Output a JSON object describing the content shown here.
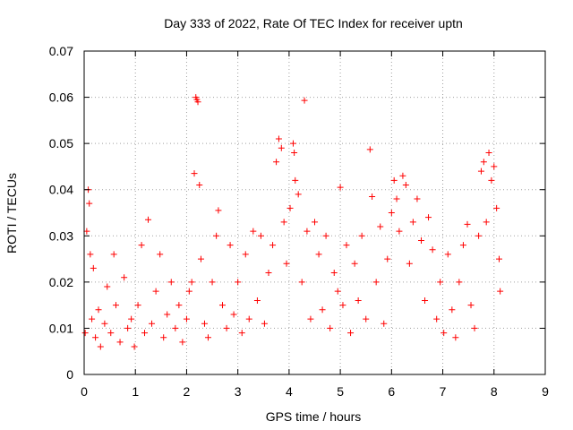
{
  "chart_data": {
    "type": "scatter",
    "title": "Day 333 of 2022, Rate Of TEC Index for receiver uptn",
    "xlabel": "GPS time / hours",
    "ylabel": "ROTI / TECUs",
    "xlim": [
      0,
      9
    ],
    "ylim": [
      0,
      0.07
    ],
    "x_ticks": [
      0,
      1,
      2,
      3,
      4,
      5,
      6,
      7,
      8,
      9
    ],
    "y_ticks": [
      0,
      0.01,
      0.02,
      0.03,
      0.04,
      0.05,
      0.06,
      0.07
    ],
    "x_tick_labels": [
      "0",
      "1",
      "2",
      "3",
      "4",
      "5",
      "6",
      "7",
      "8",
      "9"
    ],
    "y_tick_labels": [
      "0",
      "0.01",
      "0.02",
      "0.03",
      "0.04",
      "0.05",
      "0.06",
      "0.07"
    ],
    "grid": true,
    "marker": "+",
    "color": "#ff0000",
    "series": [
      {
        "name": "",
        "points": [
          [
            0.02,
            0.009
          ],
          [
            0.05,
            0.031
          ],
          [
            0.08,
            0.04
          ],
          [
            0.1,
            0.037
          ],
          [
            0.12,
            0.026
          ],
          [
            0.15,
            0.012
          ],
          [
            0.18,
            0.023
          ],
          [
            0.22,
            0.008
          ],
          [
            0.28,
            0.014
          ],
          [
            0.32,
            0.006
          ],
          [
            0.4,
            0.011
          ],
          [
            0.45,
            0.019
          ],
          [
            0.52,
            0.009
          ],
          [
            0.58,
            0.026
          ],
          [
            0.62,
            0.015
          ],
          [
            0.7,
            0.007
          ],
          [
            0.78,
            0.021
          ],
          [
            0.85,
            0.01
          ],
          [
            0.92,
            0.012
          ],
          [
            0.98,
            0.006
          ],
          [
            1.05,
            0.015
          ],
          [
            1.12,
            0.028
          ],
          [
            1.18,
            0.009
          ],
          [
            1.25,
            0.0335
          ],
          [
            1.32,
            0.011
          ],
          [
            1.4,
            0.018
          ],
          [
            1.48,
            0.026
          ],
          [
            1.55,
            0.008
          ],
          [
            1.62,
            0.013
          ],
          [
            1.7,
            0.02
          ],
          [
            1.78,
            0.01
          ],
          [
            1.85,
            0.015
          ],
          [
            1.92,
            0.007
          ],
          [
            2.0,
            0.012
          ],
          [
            2.05,
            0.018
          ],
          [
            2.1,
            0.02
          ],
          [
            2.15,
            0.0435
          ],
          [
            2.18,
            0.06
          ],
          [
            2.2,
            0.0595
          ],
          [
            2.22,
            0.059
          ],
          [
            2.25,
            0.041
          ],
          [
            2.28,
            0.025
          ],
          [
            2.35,
            0.011
          ],
          [
            2.42,
            0.008
          ],
          [
            2.5,
            0.02
          ],
          [
            2.58,
            0.03
          ],
          [
            2.62,
            0.0355
          ],
          [
            2.7,
            0.015
          ],
          [
            2.78,
            0.01
          ],
          [
            2.85,
            0.028
          ],
          [
            2.92,
            0.013
          ],
          [
            3.0,
            0.02
          ],
          [
            3.08,
            0.009
          ],
          [
            3.15,
            0.026
          ],
          [
            3.22,
            0.012
          ],
          [
            3.3,
            0.031
          ],
          [
            3.38,
            0.016
          ],
          [
            3.45,
            0.03
          ],
          [
            3.52,
            0.011
          ],
          [
            3.6,
            0.022
          ],
          [
            3.68,
            0.028
          ],
          [
            3.75,
            0.046
          ],
          [
            3.8,
            0.051
          ],
          [
            3.85,
            0.049
          ],
          [
            3.9,
            0.033
          ],
          [
            3.95,
            0.024
          ],
          [
            4.02,
            0.036
          ],
          [
            4.08,
            0.05
          ],
          [
            4.1,
            0.048
          ],
          [
            4.12,
            0.042
          ],
          [
            4.18,
            0.039
          ],
          [
            4.25,
            0.02
          ],
          [
            4.3,
            0.0593
          ],
          [
            4.35,
            0.031
          ],
          [
            4.42,
            0.012
          ],
          [
            4.5,
            0.033
          ],
          [
            4.58,
            0.026
          ],
          [
            4.65,
            0.014
          ],
          [
            4.72,
            0.03
          ],
          [
            4.8,
            0.01
          ],
          [
            4.88,
            0.022
          ],
          [
            4.95,
            0.018
          ],
          [
            5.0,
            0.0405
          ],
          [
            5.05,
            0.015
          ],
          [
            5.12,
            0.028
          ],
          [
            5.2,
            0.009
          ],
          [
            5.28,
            0.024
          ],
          [
            5.35,
            0.016
          ],
          [
            5.42,
            0.03
          ],
          [
            5.5,
            0.012
          ],
          [
            5.58,
            0.0487
          ],
          [
            5.62,
            0.0385
          ],
          [
            5.7,
            0.02
          ],
          [
            5.78,
            0.032
          ],
          [
            5.85,
            0.011
          ],
          [
            5.92,
            0.025
          ],
          [
            6.0,
            0.035
          ],
          [
            6.05,
            0.042
          ],
          [
            6.1,
            0.038
          ],
          [
            6.15,
            0.031
          ],
          [
            6.22,
            0.043
          ],
          [
            6.28,
            0.041
          ],
          [
            6.35,
            0.024
          ],
          [
            6.42,
            0.033
          ],
          [
            6.5,
            0.038
          ],
          [
            6.58,
            0.029
          ],
          [
            6.65,
            0.016
          ],
          [
            6.72,
            0.034
          ],
          [
            6.8,
            0.027
          ],
          [
            6.88,
            0.012
          ],
          [
            6.95,
            0.02
          ],
          [
            7.02,
            0.009
          ],
          [
            7.1,
            0.026
          ],
          [
            7.18,
            0.014
          ],
          [
            7.25,
            0.008
          ],
          [
            7.32,
            0.02
          ],
          [
            7.4,
            0.028
          ],
          [
            7.48,
            0.0325
          ],
          [
            7.55,
            0.015
          ],
          [
            7.62,
            0.01
          ],
          [
            7.7,
            0.03
          ],
          [
            7.75,
            0.044
          ],
          [
            7.8,
            0.046
          ],
          [
            7.85,
            0.033
          ],
          [
            7.9,
            0.048
          ],
          [
            7.95,
            0.042
          ],
          [
            8.0,
            0.045
          ],
          [
            8.05,
            0.036
          ],
          [
            8.1,
            0.025
          ],
          [
            8.12,
            0.018
          ]
        ]
      }
    ]
  }
}
